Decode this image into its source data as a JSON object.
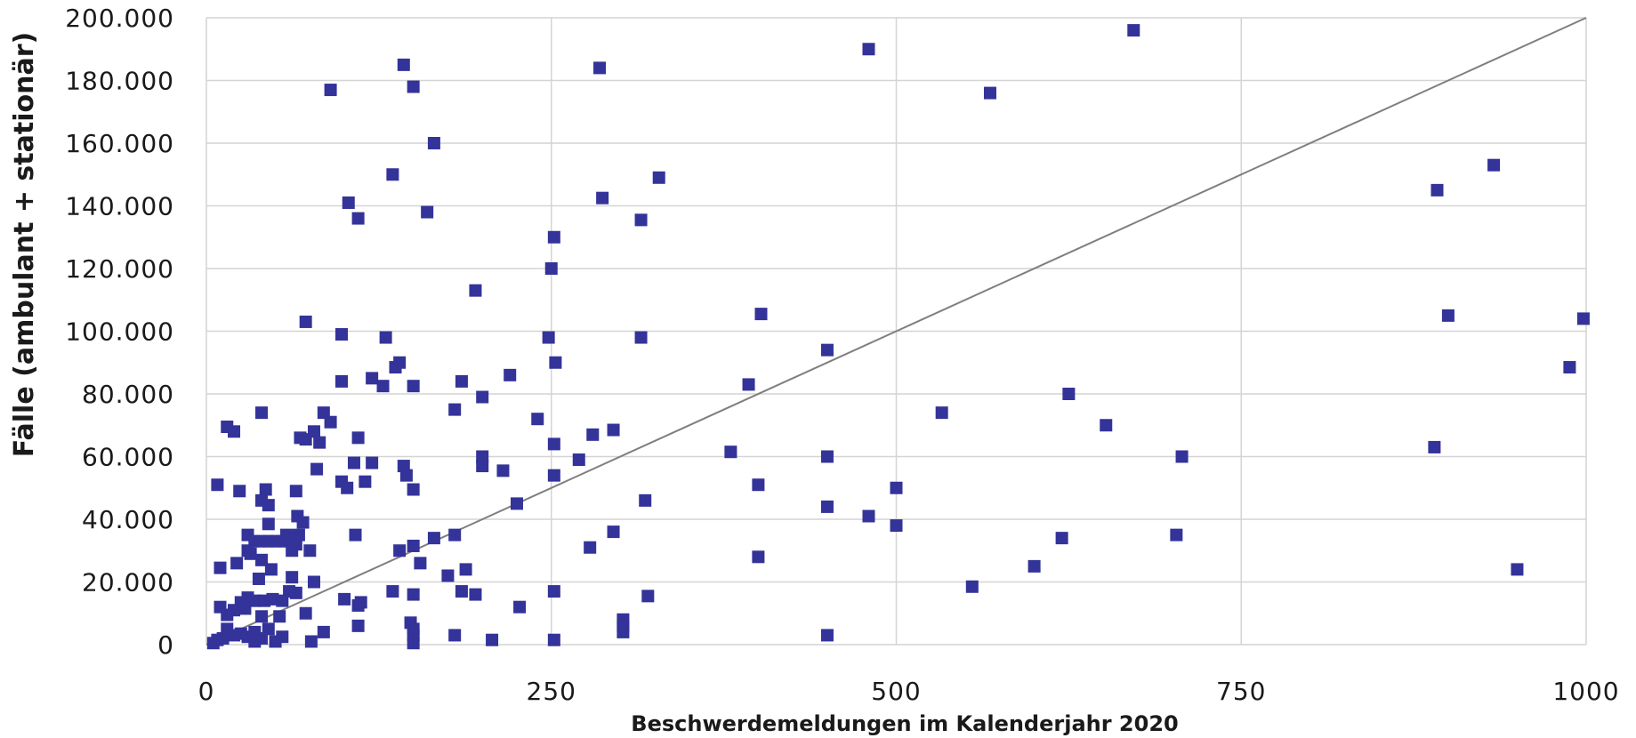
{
  "chart_data": {
    "type": "scatter",
    "title": "",
    "xlabel": "Beschwerdemeldungen im Kalenderjahr 2020",
    "ylabel": "Fälle (ambulant + stationär)",
    "xlim": [
      0,
      1000
    ],
    "ylim": [
      0,
      200000
    ],
    "x_ticks": [
      0,
      250,
      500,
      750,
      1000
    ],
    "x_tick_labels": [
      "0",
      "250",
      "500",
      "750",
      "1000"
    ],
    "y_ticks": [
      0,
      20000,
      40000,
      60000,
      80000,
      100000,
      120000,
      140000,
      160000,
      180000,
      200000
    ],
    "y_tick_labels": [
      "0",
      "20.000",
      "40.000",
      "60.000",
      "80.000",
      "100.000",
      "120.000",
      "140.000",
      "160.000",
      "180.000",
      "200.000"
    ],
    "grid": true,
    "legend": "none",
    "marker_color": "#33339a",
    "reference_line": {
      "from": [
        0,
        0
      ],
      "to": [
        1000,
        200000
      ],
      "color": "#7f7f7f"
    },
    "series": [
      {
        "points": [
          [
            143,
            185000
          ],
          [
            150,
            178000
          ],
          [
            90,
            177000
          ],
          [
            165,
            160000
          ],
          [
            135,
            150000
          ],
          [
            103,
            141000
          ],
          [
            110,
            136000
          ],
          [
            160,
            138000
          ],
          [
            195,
            113000
          ],
          [
            72,
            103000
          ],
          [
            98,
            99000
          ],
          [
            130,
            98000
          ],
          [
            140,
            90000
          ],
          [
            137,
            88500
          ],
          [
            120,
            85000
          ],
          [
            98,
            84000
          ],
          [
            128,
            82500
          ],
          [
            150,
            82500
          ],
          [
            85,
            74000
          ],
          [
            78,
            68000
          ],
          [
            72,
            65500
          ],
          [
            68,
            66000
          ],
          [
            40,
            74000
          ],
          [
            15,
            69500
          ],
          [
            20,
            68000
          ],
          [
            90,
            71000
          ],
          [
            110,
            66000
          ],
          [
            150,
            49500
          ],
          [
            145,
            54000
          ],
          [
            120,
            58000
          ],
          [
            107,
            58000
          ],
          [
            98,
            52000
          ],
          [
            102,
            50000
          ],
          [
            115,
            52000
          ],
          [
            143,
            57000
          ],
          [
            165,
            34000
          ],
          [
            175,
            22000
          ],
          [
            155,
            26000
          ],
          [
            150,
            31500
          ],
          [
            140,
            30000
          ],
          [
            108,
            35000
          ],
          [
            100,
            14500
          ],
          [
            110,
            12500
          ],
          [
            112,
            13500
          ],
          [
            110,
            6000
          ],
          [
            135,
            17000
          ],
          [
            150,
            16000
          ],
          [
            148,
            7000
          ],
          [
            150,
            5000
          ],
          [
            150,
            3000
          ],
          [
            150,
            500
          ],
          [
            8,
            51000
          ],
          [
            24,
            49000
          ],
          [
            43,
            49500
          ],
          [
            65,
            49000
          ],
          [
            45,
            44500
          ],
          [
            40,
            46000
          ],
          [
            30,
            35000
          ],
          [
            35,
            33000
          ],
          [
            40,
            33000
          ],
          [
            45,
            33000
          ],
          [
            50,
            33000
          ],
          [
            55,
            33000
          ],
          [
            60,
            33000
          ],
          [
            65,
            32000
          ],
          [
            67,
            35000
          ],
          [
            70,
            39000
          ],
          [
            66,
            41000
          ],
          [
            75,
            30000
          ],
          [
            62,
            34000
          ],
          [
            58,
            35000
          ],
          [
            45,
            38500
          ],
          [
            40,
            27000
          ],
          [
            38,
            21000
          ],
          [
            47,
            24000
          ],
          [
            22,
            26000
          ],
          [
            10,
            24500
          ],
          [
            78,
            20000
          ],
          [
            80,
            56000
          ],
          [
            82,
            64500
          ],
          [
            62,
            21500
          ],
          [
            65,
            16500
          ],
          [
            60,
            17000
          ],
          [
            72,
            10000
          ],
          [
            85,
            4000
          ],
          [
            76,
            1000
          ],
          [
            55,
            2500
          ],
          [
            50,
            1000
          ],
          [
            45,
            5000
          ],
          [
            40,
            9000
          ],
          [
            35,
            14000
          ],
          [
            30,
            15000
          ],
          [
            25,
            13500
          ],
          [
            28,
            11500
          ],
          [
            20,
            11000
          ],
          [
            15,
            9500
          ],
          [
            10,
            12000
          ],
          [
            15,
            5000
          ],
          [
            12,
            2000
          ],
          [
            8,
            1500
          ],
          [
            5,
            500
          ],
          [
            20,
            3000
          ],
          [
            25,
            3500
          ],
          [
            30,
            2500
          ],
          [
            35,
            4000
          ],
          [
            40,
            2000
          ],
          [
            35,
            1000
          ],
          [
            42,
            14000
          ],
          [
            48,
            14500
          ],
          [
            55,
            14000
          ],
          [
            53,
            9000
          ],
          [
            30,
            30000
          ],
          [
            32,
            29000
          ],
          [
            62,
            30000
          ],
          [
            180,
            75000
          ],
          [
            185,
            84000
          ],
          [
            200,
            79000
          ],
          [
            200,
            60000
          ],
          [
            200,
            57000
          ],
          [
            220,
            86000
          ],
          [
            240,
            72000
          ],
          [
            248,
            98000
          ],
          [
            250,
            120000
          ],
          [
            252,
            130000
          ],
          [
            253,
            90000
          ],
          [
            252,
            54000
          ],
          [
            252,
            64000
          ],
          [
            215,
            55500
          ],
          [
            225,
            45000
          ],
          [
            180,
            35000
          ],
          [
            185,
            17000
          ],
          [
            188,
            24000
          ],
          [
            195,
            16000
          ],
          [
            180,
            3000
          ],
          [
            207,
            1500
          ],
          [
            227,
            12000
          ],
          [
            252,
            17000
          ],
          [
            252,
            1500
          ],
          [
            270,
            59000
          ],
          [
            280,
            67000
          ],
          [
            285,
            184000
          ],
          [
            287,
            142500
          ],
          [
            315,
            135500
          ],
          [
            328,
            149000
          ],
          [
            315,
            98000
          ],
          [
            295,
            68500
          ],
          [
            278,
            31000
          ],
          [
            295,
            36000
          ],
          [
            318,
            46000
          ],
          [
            320,
            15500
          ],
          [
            302,
            8000
          ],
          [
            302,
            6000
          ],
          [
            302,
            4000
          ],
          [
            480,
            190000
          ],
          [
            568,
            176000
          ],
          [
            402,
            105500
          ],
          [
            450,
            94000
          ],
          [
            393,
            83000
          ],
          [
            380,
            61500
          ],
          [
            450,
            60000
          ],
          [
            400,
            51000
          ],
          [
            400,
            28000
          ],
          [
            450,
            44000
          ],
          [
            480,
            41000
          ],
          [
            500,
            50000
          ],
          [
            500,
            38000
          ],
          [
            450,
            3000
          ],
          [
            533,
            74000
          ],
          [
            555,
            18500
          ],
          [
            672,
            196000
          ],
          [
            625,
            80000
          ],
          [
            652,
            70000
          ],
          [
            707,
            60000
          ],
          [
            703,
            35000
          ],
          [
            620,
            34000
          ],
          [
            600,
            25000
          ],
          [
            892,
            145000
          ],
          [
            933,
            153000
          ],
          [
            900,
            105000
          ],
          [
            998,
            104000
          ],
          [
            988,
            88500
          ],
          [
            890,
            63000
          ],
          [
            950,
            24000
          ]
        ]
      }
    ]
  }
}
